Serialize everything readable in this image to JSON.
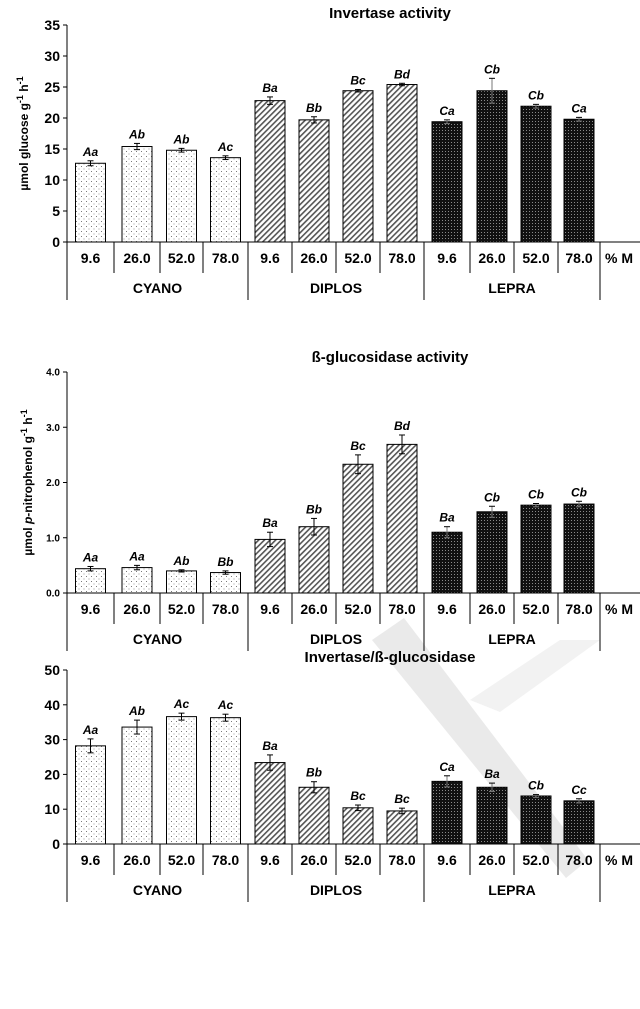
{
  "x_axis": {
    "categories": [
      "9.6",
      "26.0",
      "52.0",
      "78.0"
    ],
    "groups": [
      "CYANO",
      "DIPLOS",
      "LEPRA"
    ],
    "unit_label": "% M"
  },
  "colors": {
    "CYANO": "#f4f4f4",
    "DIPLOS": "#c8c8c8",
    "LEPRA": "#111111",
    "axis": "#000000"
  },
  "watermark": "diagonal-wedge-mark",
  "chart_data": [
    {
      "type": "bar",
      "title": "Invertase activity",
      "ylabel_prefix": "µmol glucose g",
      "ylabel_sup1": "-1",
      "ylabel_mid": " h",
      "ylabel_sup2": "-1",
      "ylim": [
        0,
        35
      ],
      "yticks": [
        0,
        5,
        10,
        15,
        20,
        25,
        30,
        35
      ],
      "ytick_labels": [
        "0",
        "5",
        "10",
        "15",
        "20",
        "25",
        "30",
        "35"
      ],
      "series": [
        {
          "group": "CYANO",
          "values": [
            12.7,
            15.4,
            14.8,
            13.6
          ],
          "errors": [
            0.4,
            0.5,
            0.3,
            0.3
          ],
          "letters": [
            "Aa",
            "Ab",
            "Ab",
            "Ac"
          ]
        },
        {
          "group": "DIPLOS",
          "values": [
            22.8,
            19.7,
            24.4,
            25.4
          ],
          "errors": [
            0.6,
            0.5,
            0.2,
            0.2
          ],
          "letters": [
            "Ba",
            "Bb",
            "Bc",
            "Bd"
          ]
        },
        {
          "group": "LEPRA",
          "values": [
            19.4,
            24.4,
            21.9,
            19.8
          ],
          "errors": [
            0.3,
            2.0,
            0.3,
            0.3
          ],
          "letters": [
            "Ca",
            "Cb",
            "Cb",
            "Ca"
          ]
        }
      ]
    },
    {
      "type": "bar",
      "title": "ß-glucosidase activity",
      "ylabel_prefix": "µmol ",
      "ylabel_italic": "p",
      "ylabel_suffix": "-nitrophenol g",
      "ylabel_sup1": "-1",
      "ylabel_mid": " h",
      "ylabel_sup2": "-1",
      "ylim": [
        0,
        4
      ],
      "yticks": [
        0,
        1,
        2,
        3,
        4
      ],
      "ytick_labels": [
        "0.0",
        "1.0",
        "2.0",
        "3.0",
        "4.0"
      ],
      "series": [
        {
          "group": "CYANO",
          "values": [
            0.44,
            0.46,
            0.4,
            0.37
          ],
          "errors": [
            0.04,
            0.04,
            0.02,
            0.03
          ],
          "letters": [
            "Aa",
            "Aa",
            "Ab",
            "Bb"
          ]
        },
        {
          "group": "DIPLOS",
          "values": [
            0.97,
            1.2,
            2.33,
            2.69
          ],
          "errors": [
            0.13,
            0.15,
            0.17,
            0.17
          ],
          "letters": [
            "Ba",
            "Bb",
            "Bc",
            "Bd"
          ]
        },
        {
          "group": "LEPRA",
          "values": [
            1.1,
            1.47,
            1.59,
            1.61
          ],
          "errors": [
            0.1,
            0.1,
            0.03,
            0.05
          ],
          "letters": [
            "Ba",
            "Cb",
            "Cb",
            "Cb"
          ]
        }
      ]
    },
    {
      "type": "bar",
      "title": "Invertase/ß-glucosidase",
      "ylim": [
        0,
        50
      ],
      "yticks": [
        0,
        10,
        20,
        30,
        40,
        50
      ],
      "ytick_labels": [
        "0",
        "10",
        "20",
        "30",
        "40",
        "50"
      ],
      "series": [
        {
          "group": "CYANO",
          "values": [
            28.2,
            33.6,
            36.6,
            36.3
          ],
          "errors": [
            2.0,
            2.0,
            1.0,
            1.0
          ],
          "letters": [
            "Aa",
            "Ab",
            "Ac",
            "Ac"
          ]
        },
        {
          "group": "DIPLOS",
          "values": [
            23.4,
            16.3,
            10.4,
            9.5
          ],
          "errors": [
            2.2,
            1.6,
            0.8,
            0.8
          ],
          "letters": [
            "Ba",
            "Bb",
            "Bc",
            "Bc"
          ]
        },
        {
          "group": "LEPRA",
          "values": [
            18.0,
            16.3,
            13.8,
            12.4
          ],
          "errors": [
            1.6,
            1.2,
            0.4,
            0.6
          ],
          "letters": [
            "Ca",
            "Ba",
            "Cb",
            "Cc"
          ]
        }
      ]
    }
  ]
}
